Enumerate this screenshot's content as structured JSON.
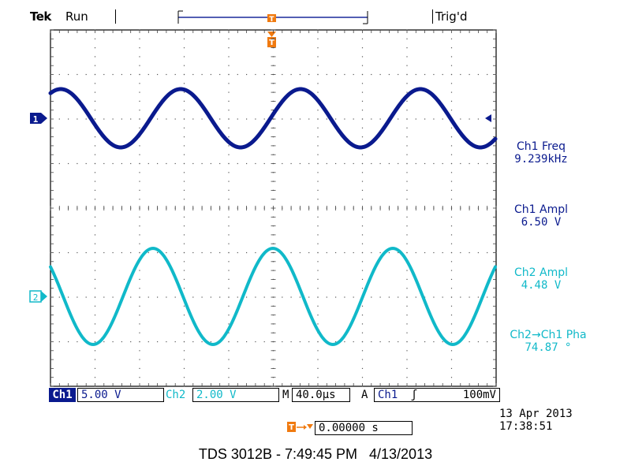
{
  "header": {
    "brand": "Tek",
    "run_state": "Run",
    "trigger_state": "Trig'd"
  },
  "channels": {
    "ch1": {
      "marker": "1",
      "color": "#0a1a8e"
    },
    "ch2": {
      "marker": "2",
      "color": "#10b9c9"
    }
  },
  "measurements": [
    {
      "label": "Ch1 Freq",
      "value": "9.239kHz"
    },
    {
      "label": "Ch1 Ampl",
      "value": "6.50 V"
    },
    {
      "label": "Ch2 Ampl",
      "value": "4.48 V"
    },
    {
      "label": "Ch2→Ch1 Pha",
      "value": "74.87 °"
    }
  ],
  "status_bar": {
    "ch1_label": "Ch1",
    "ch1_scale": "5.00 V",
    "ch2_label": "Ch2",
    "ch2_scale": "2.00 V",
    "timebase_prefix": "M",
    "timebase": "40.0µs",
    "trigger_mode": "A",
    "trigger_source": "Ch1",
    "trigger_slope": "ʃ",
    "trigger_level": "100mV"
  },
  "datetime": {
    "date": "13 Apr 2013",
    "time": "17:38:51"
  },
  "trigger_position": {
    "value": "0.00000 s"
  },
  "caption": "TDS 3012B - 7:49:45 PM   4/13/2013",
  "icons": {
    "trigger_marker": "T-orange-marker-icon",
    "trigger_level": "left-arrow-icon",
    "trigger_delay": "T-arrow-down-icon"
  }
}
